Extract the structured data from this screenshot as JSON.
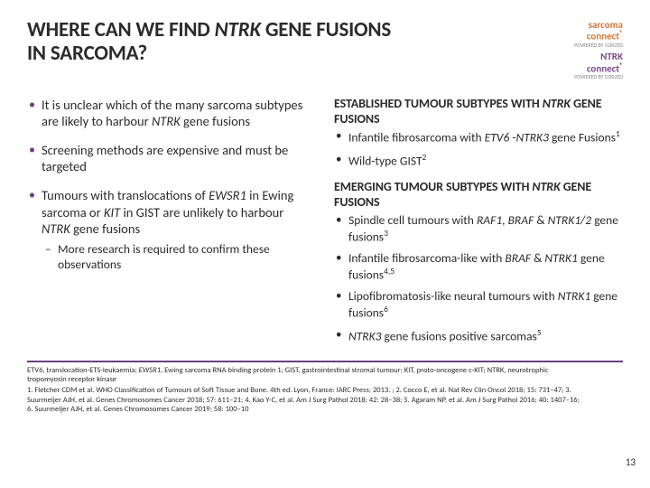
{
  "title_html": "WHERE CAN WE FIND <em class='gene'>NTRK</em> GENE FUSIONS IN SARCOMA?",
  "logos": {
    "top": {
      "brand_html": "sarcoma<br>connect<sup>®</sup>",
      "sub": "POWERED BY COR2ED"
    },
    "bottom": {
      "brand_html": "NTRK<br>connect<sup>®</sup>",
      "sub": "POWERED BY COR2ED"
    }
  },
  "left_bullets": [
    {
      "html": "It is unclear which of the many sarcoma subtypes are likely to harbour <em class='gene'>NTRK</em> gene fusions"
    },
    {
      "html": "Screening methods are expensive and must be targeted"
    },
    {
      "html": "Tumours with translocations of <em class='gene'>EWSR1</em> in Ewing sarcoma or <em class='gene'>KIT</em> in GIST are unlikely to harbour <em class='gene'>NTRK</em> gene fusions",
      "sub": [
        {
          "html": "More research is required to confirm these observations"
        }
      ]
    }
  ],
  "right_sections": [
    {
      "head_html": "ESTABLISHED TUMOUR SUBTYPES WITH <em class='gene'>NTRK</em> GENE FUSIONS",
      "items": [
        {
          "html": "Infantile fibrosarcoma with <em class='gene'>ETV6</em> -<em class='gene'>NTRK3</em> gene Fusions<sup>1</sup>"
        },
        {
          "html": "Wild-type GIST<sup>2</sup>"
        }
      ]
    },
    {
      "head_html": "EMERGING TUMOUR SUBTYPES WITH <em class='gene'>NTRK</em> GENE FUSIONS",
      "items": [
        {
          "html": "Spindle cell tumours with <em class='gene'>RAF1</em>, <em class='gene'>BRAF</em> &amp; <em class='gene'>NTRK1/2</em> gene fusions<sup>3</sup>"
        },
        {
          "html": "Infantile fibrosarcoma-like with <em class='gene'>BRAF</em> &amp; <em class='gene'>NTRK1</em> gene fusions<sup>4,5</sup>"
        },
        {
          "html": "Lipofibromatosis-like neural tumours with <em class='gene'>NTRK1</em> gene fusions<sup>6</sup>"
        },
        {
          "html": "<em class='gene'>NTRK3</em> gene fusions positive sarcomas<sup>5</sup>"
        }
      ]
    }
  ],
  "footnotes": [
    {
      "html": "ETV6, translocation-ETS-leukaemia; <em class='gene'>EWSR1</em>, Ewing sarcoma RNA binding protein 1; GIST, gastrointestinal stromal tumour; KIT, proto-oncogene c-KIT; NTRK, neurotrophic tropomyosin receptor kinase"
    },
    {
      "html": "1. Fletcher CDM et al. WHO Classification of Tumours of Soft Tissue and Bone. 4th ed. Lyon, France: IARC Press; 2013. ; 2. Cocco E, et al. Nat Rev Clin Oncol 2018; 15: 731–47; 3. Suurmeijer AJH, et al. Genes Chromosomes Cancer 2018; 57: 611–21; 4. Kao Y-C, et al. Am J Surg Pathol 2018; 42: 28–38; 5. Agaram NP, et al. Am J Surg Pathol 2016; 40: 1407–16; 6. Suurmeijer AJH, et al. Genes Chromosomes Cancer 2019; 58: 100–10"
    }
  ],
  "page_number": "13",
  "colors": {
    "accent": "#6b3f7d",
    "text": "#2b2b2b"
  }
}
